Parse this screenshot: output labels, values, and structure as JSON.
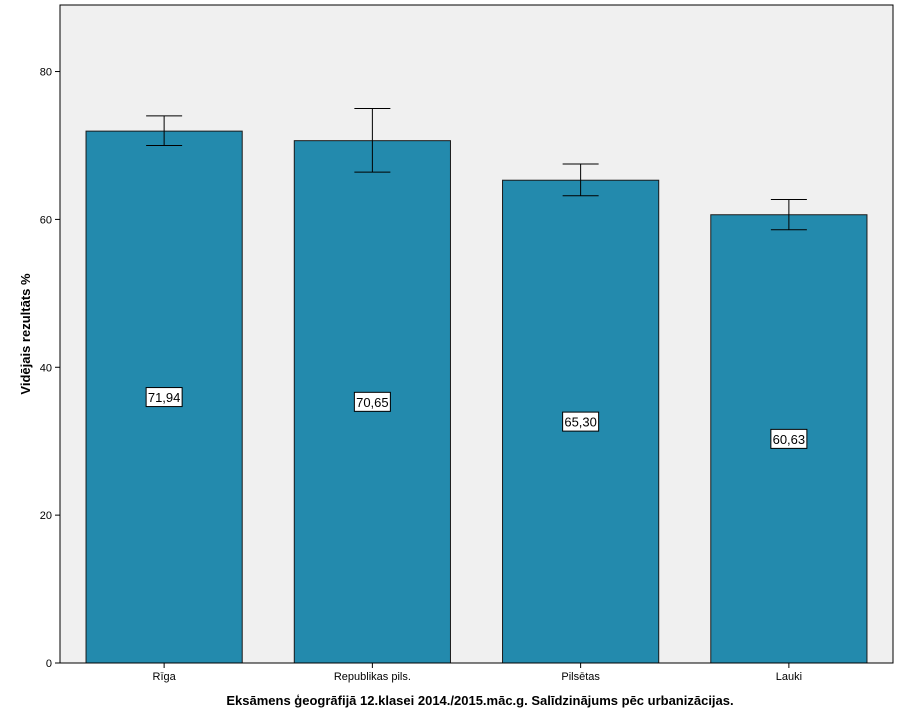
{
  "colors": {
    "bar_fill": "#238AAD",
    "bar_stroke": "#1a1a1a",
    "plot_background": "#F0F0F0",
    "page_background": "#FFFFFF",
    "axis": "#000000",
    "error_bar": "#000000"
  },
  "chart_data": {
    "type": "bar",
    "title": "",
    "xlabel": "Eksāmens ģeogrāfijā 12.klasei 2014./2015.māc.g. Salīdzinājums pēc urbanizācijas.",
    "ylabel": "Vidējais rezultāts %",
    "ylim": [
      0,
      89
    ],
    "yticks": [
      0,
      20,
      40,
      60,
      80
    ],
    "grid": false,
    "categories": [
      "Rīga",
      "Republikas pils.",
      "Pilsētas",
      "Lauki"
    ],
    "values": [
      71.94,
      70.65,
      65.3,
      60.63
    ],
    "data_labels": [
      "71,94",
      "70,65",
      "65,30",
      "60,63"
    ],
    "error_bars": [
      {
        "low": 70.0,
        "high": 74.0
      },
      {
        "low": 66.4,
        "high": 75.0
      },
      {
        "low": 63.2,
        "high": 67.5
      },
      {
        "low": 58.6,
        "high": 62.7
      }
    ]
  }
}
